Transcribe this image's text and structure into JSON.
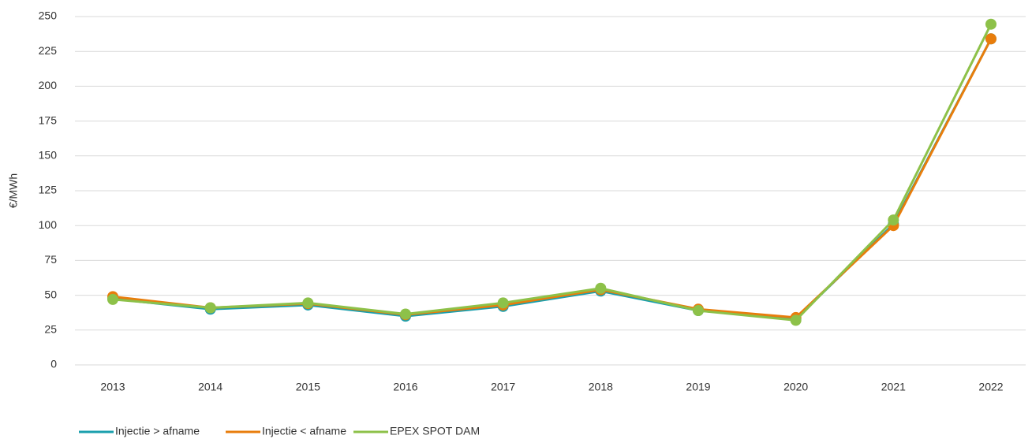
{
  "chart_data": {
    "type": "line",
    "y_label": "€/MWh",
    "categories": [
      "2013",
      "2014",
      "2015",
      "2016",
      "2017",
      "2018",
      "2019",
      "2020",
      "2021",
      "2022"
    ],
    "series": [
      {
        "name": "Injectie > afname",
        "color": "#1a9fad",
        "values": [
          47.5,
          40,
          43,
          35,
          42,
          53,
          39,
          33,
          101,
          234
        ]
      },
      {
        "name": "Injectie < afname",
        "color": "#e87d0c",
        "values": [
          49,
          41,
          44,
          36,
          43,
          54,
          40,
          34,
          100,
          234
        ]
      },
      {
        "name": "EPEX SPOT DAM",
        "color": "#8dc149",
        "values": [
          47,
          41,
          44.5,
          36.5,
          44.5,
          55,
          39,
          32,
          104,
          244.5
        ]
      }
    ],
    "ylim": [
      0,
      250
    ],
    "yticks": [
      0,
      25,
      50,
      75,
      100,
      125,
      150,
      175,
      200,
      225,
      250
    ],
    "grid": true,
    "legend": "bottom-left"
  }
}
